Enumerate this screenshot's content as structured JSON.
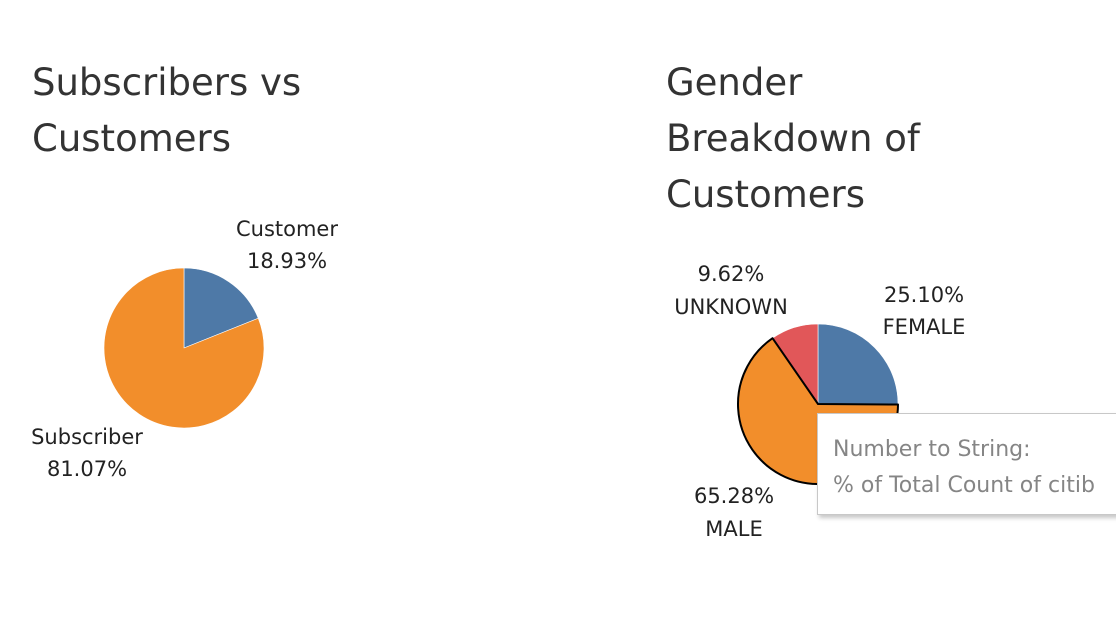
{
  "chart_data": [
    {
      "type": "pie",
      "title_lines": [
        "Subscribers vs",
        "Customers"
      ],
      "slices": [
        {
          "label": "Customer",
          "value_label": "18.93%",
          "value": 18.93,
          "color": "#4e79a7"
        },
        {
          "label": "Subscriber",
          "value_label": "81.07%",
          "value": 81.07,
          "color": "#f28e2b"
        }
      ]
    },
    {
      "type": "pie",
      "title_lines": [
        "Gender",
        "Breakdown of",
        "Customers"
      ],
      "slices": [
        {
          "label": "FEMALE",
          "value_label": "25.10%",
          "value": 25.1,
          "color": "#4e79a7"
        },
        {
          "label": "MALE",
          "value_label": "65.28%",
          "value": 65.28,
          "color": "#f28e2b"
        },
        {
          "label": "UNKNOWN",
          "value_label": "9.62%",
          "value": 9.62,
          "color": "#e15759"
        }
      ],
      "highlighted": "MALE"
    }
  ],
  "tooltip": {
    "line1": "Number to String:",
    "line2": "% of Total Count of citib"
  }
}
